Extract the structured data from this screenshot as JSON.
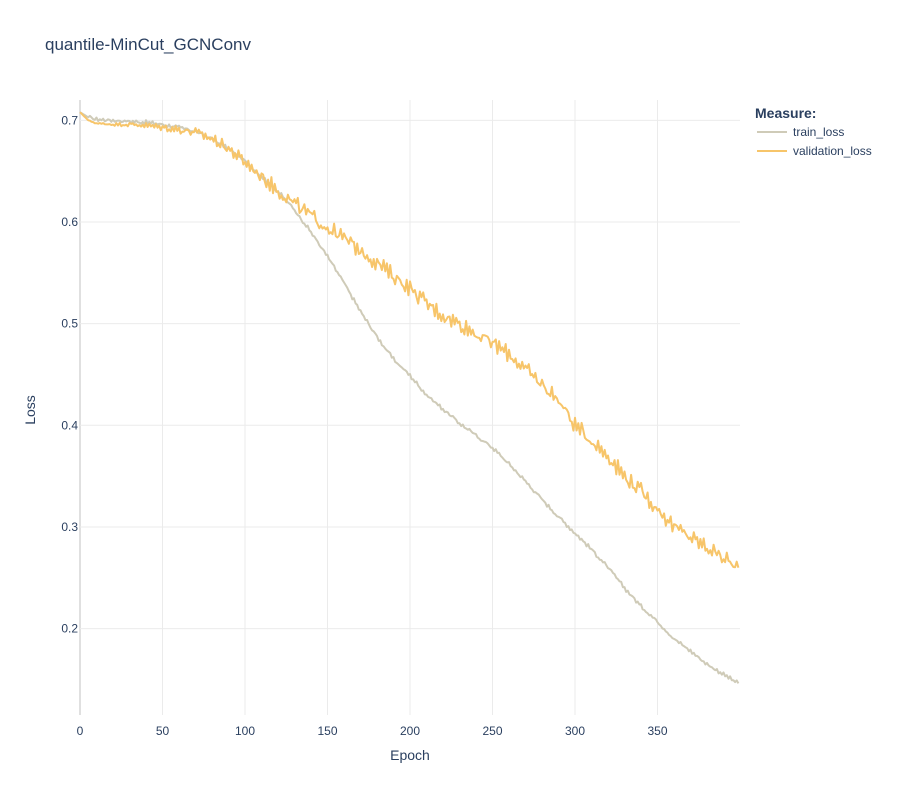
{
  "chart_data": {
    "type": "line",
    "title": "quantile-MinCut_GCNConv",
    "xlabel": "Epoch",
    "ylabel": "Loss",
    "xlim": [
      0,
      400
    ],
    "ylim": [
      0.115,
      0.72
    ],
    "x_ticks": [
      0,
      50,
      100,
      150,
      200,
      250,
      300,
      350
    ],
    "y_ticks": [
      0.2,
      0.3,
      0.4,
      0.5,
      0.6,
      0.7
    ],
    "grid": true,
    "legend": {
      "title": "Measure:",
      "placement": "top-right"
    },
    "series": [
      {
        "name": "train_loss",
        "color": "#cfcbb8",
        "noise": 0.0015,
        "points": [
          [
            0,
            0.708
          ],
          [
            5,
            0.703
          ],
          [
            10,
            0.701
          ],
          [
            20,
            0.7
          ],
          [
            30,
            0.699
          ],
          [
            40,
            0.698
          ],
          [
            50,
            0.696
          ],
          [
            60,
            0.693
          ],
          [
            70,
            0.689
          ],
          [
            80,
            0.682
          ],
          [
            90,
            0.672
          ],
          [
            100,
            0.66
          ],
          [
            110,
            0.645
          ],
          [
            120,
            0.63
          ],
          [
            130,
            0.612
          ],
          [
            140,
            0.59
          ],
          [
            150,
            0.566
          ],
          [
            160,
            0.54
          ],
          [
            170,
            0.512
          ],
          [
            180,
            0.487
          ],
          [
            190,
            0.465
          ],
          [
            200,
            0.449
          ],
          [
            210,
            0.43
          ],
          [
            220,
            0.416
          ],
          [
            230,
            0.402
          ],
          [
            240,
            0.39
          ],
          [
            250,
            0.378
          ],
          [
            260,
            0.362
          ],
          [
            270,
            0.345
          ],
          [
            280,
            0.327
          ],
          [
            290,
            0.31
          ],
          [
            300,
            0.294
          ],
          [
            310,
            0.278
          ],
          [
            320,
            0.26
          ],
          [
            330,
            0.24
          ],
          [
            340,
            0.222
          ],
          [
            350,
            0.207
          ],
          [
            360,
            0.19
          ],
          [
            370,
            0.178
          ],
          [
            380,
            0.165
          ],
          [
            390,
            0.155
          ],
          [
            400,
            0.145
          ]
        ]
      },
      {
        "name": "validation_loss",
        "color": "#f7c56a",
        "noise": 0.006,
        "points": [
          [
            0,
            0.708
          ],
          [
            5,
            0.7
          ],
          [
            10,
            0.697
          ],
          [
            20,
            0.696
          ],
          [
            30,
            0.696
          ],
          [
            40,
            0.695
          ],
          [
            50,
            0.693
          ],
          [
            60,
            0.691
          ],
          [
            70,
            0.688
          ],
          [
            80,
            0.682
          ],
          [
            90,
            0.672
          ],
          [
            100,
            0.659
          ],
          [
            110,
            0.645
          ],
          [
            120,
            0.631
          ],
          [
            130,
            0.618
          ],
          [
            140,
            0.606
          ],
          [
            150,
            0.594
          ],
          [
            160,
            0.584
          ],
          [
            170,
            0.572
          ],
          [
            180,
            0.56
          ],
          [
            190,
            0.547
          ],
          [
            200,
            0.535
          ],
          [
            210,
            0.52
          ],
          [
            220,
            0.508
          ],
          [
            230,
            0.5
          ],
          [
            240,
            0.49
          ],
          [
            250,
            0.481
          ],
          [
            260,
            0.47
          ],
          [
            270,
            0.455
          ],
          [
            280,
            0.44
          ],
          [
            290,
            0.425
          ],
          [
            300,
            0.4
          ],
          [
            310,
            0.385
          ],
          [
            320,
            0.37
          ],
          [
            330,
            0.35
          ],
          [
            340,
            0.335
          ],
          [
            350,
            0.318
          ],
          [
            360,
            0.3
          ],
          [
            370,
            0.29
          ],
          [
            380,
            0.28
          ],
          [
            390,
            0.27
          ],
          [
            400,
            0.258
          ]
        ]
      }
    ]
  }
}
